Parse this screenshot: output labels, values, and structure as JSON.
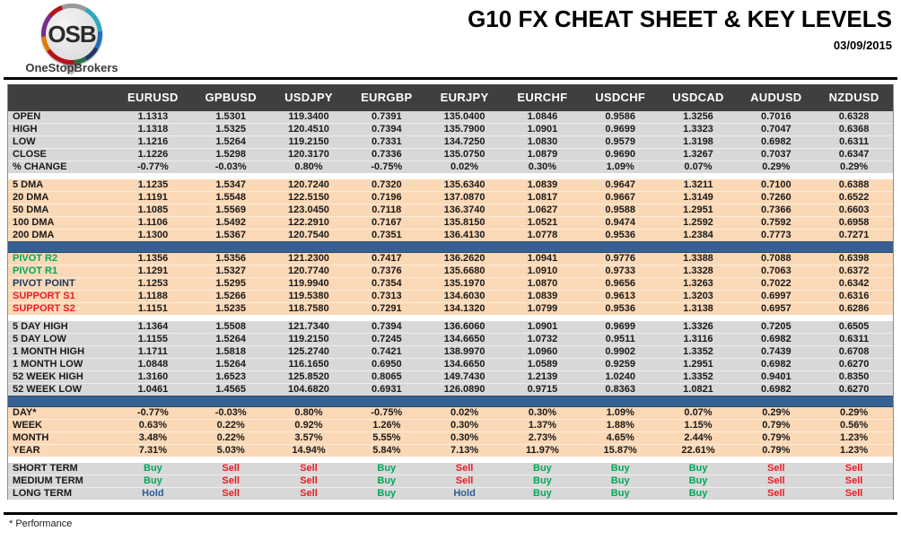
{
  "logo": {
    "circle_text": "OSB",
    "brand": "OneStopBrokers"
  },
  "header": {
    "title": "G10 FX CHEAT SHEET & KEY LEVELS",
    "date": "03/09/2015"
  },
  "colors": {
    "accent_blue": "#376092",
    "peach": "#fbd8b6",
    "gray": "#d8d8d8",
    "header_bg": "#3f3f3f",
    "buy": "#00a859",
    "sell": "#ec1c24",
    "hold": "#2e5b97",
    "green": "#00a859",
    "red": "#ec1c24",
    "navy": "#17375d"
  },
  "table": {
    "columns": [
      "EURUSD",
      "GPBUSD",
      "USDJPY",
      "EURGBP",
      "EURJPY",
      "EURCHF",
      "USDCHF",
      "USDCAD",
      "AUDUSD",
      "NZDUSD"
    ],
    "blocks": [
      {
        "name": "ohlc",
        "bg": "gray",
        "after": "gap",
        "rows": [
          {
            "label": "OPEN",
            "values": [
              "1.1313",
              "1.5301",
              "119.3400",
              "0.7391",
              "135.0400",
              "1.0846",
              "0.9586",
              "1.3256",
              "0.7016",
              "0.6328"
            ]
          },
          {
            "label": "HIGH",
            "values": [
              "1.1318",
              "1.5325",
              "120.4510",
              "0.7394",
              "135.7900",
              "1.0901",
              "0.9699",
              "1.3323",
              "0.7047",
              "0.6368"
            ]
          },
          {
            "label": "LOW",
            "values": [
              "1.1216",
              "1.5264",
              "119.2150",
              "0.7331",
              "134.7250",
              "1.0830",
              "0.9579",
              "1.3198",
              "0.6982",
              "0.6311"
            ]
          },
          {
            "label": "CLOSE",
            "values": [
              "1.1226",
              "1.5298",
              "120.3170",
              "0.7336",
              "135.0750",
              "1.0879",
              "0.9690",
              "1.3267",
              "0.7037",
              "0.6347"
            ]
          },
          {
            "label": "% CHANGE",
            "values": [
              "-0.77%",
              "-0.03%",
              "0.80%",
              "-0.75%",
              "0.02%",
              "0.30%",
              "1.09%",
              "0.07%",
              "0.29%",
              "0.29%"
            ]
          }
        ]
      },
      {
        "name": "moving-averages",
        "bg": "peach",
        "after": "blue",
        "rows": [
          {
            "label": "5 DMA",
            "values": [
              "1.1235",
              "1.5347",
              "120.7240",
              "0.7320",
              "135.6340",
              "1.0839",
              "0.9647",
              "1.3211",
              "0.7100",
              "0.6388"
            ]
          },
          {
            "label": "20 DMA",
            "values": [
              "1.1191",
              "1.5548",
              "122.5150",
              "0.7196",
              "137.0870",
              "1.0817",
              "0.9667",
              "1.3149",
              "0.7260",
              "0.6522"
            ]
          },
          {
            "label": "50 DMA",
            "values": [
              "1.1085",
              "1.5569",
              "123.0450",
              "0.7118",
              "136.3740",
              "1.0627",
              "0.9588",
              "1.2951",
              "0.7366",
              "0.6603"
            ]
          },
          {
            "label": "100 DMA",
            "values": [
              "1.1106",
              "1.5492",
              "122.2910",
              "0.7167",
              "135.8150",
              "1.0521",
              "0.9474",
              "1.2592",
              "0.7592",
              "0.6958"
            ]
          },
          {
            "label": "200 DMA",
            "values": [
              "1.1300",
              "1.5367",
              "120.7540",
              "0.7351",
              "136.4130",
              "1.0778",
              "0.9536",
              "1.2384",
              "0.7773",
              "0.7271"
            ]
          }
        ]
      },
      {
        "name": "pivots",
        "bg": "peach",
        "after": "gap",
        "rows": [
          {
            "label": "PIVOT R2",
            "label_color": "green",
            "values": [
              "1.1356",
              "1.5356",
              "121.2300",
              "0.7417",
              "136.2620",
              "1.0941",
              "0.9776",
              "1.3388",
              "0.7088",
              "0.6398"
            ]
          },
          {
            "label": "PIVOT R1",
            "label_color": "green",
            "values": [
              "1.1291",
              "1.5327",
              "120.7740",
              "0.7376",
              "135.6680",
              "1.0910",
              "0.9733",
              "1.3328",
              "0.7063",
              "0.6372"
            ]
          },
          {
            "label": "PIVOT POINT",
            "label_color": "navy",
            "values": [
              "1.1253",
              "1.5295",
              "119.9940",
              "0.7354",
              "135.1970",
              "1.0870",
              "0.9656",
              "1.3263",
              "0.7022",
              "0.6342"
            ]
          },
          {
            "label": "SUPPORT S1",
            "label_color": "red",
            "values": [
              "1.1188",
              "1.5266",
              "119.5380",
              "0.7313",
              "134.6030",
              "1.0839",
              "0.9613",
              "1.3203",
              "0.6997",
              "0.6316"
            ]
          },
          {
            "label": "SUPPORT S2",
            "label_color": "red",
            "values": [
              "1.1151",
              "1.5235",
              "118.7580",
              "0.7291",
              "134.1320",
              "1.0799",
              "0.9536",
              "1.3138",
              "0.6957",
              "0.6286"
            ]
          }
        ]
      },
      {
        "name": "ranges",
        "bg": "gray",
        "after": "blue",
        "rows": [
          {
            "label": "5 DAY HIGH",
            "values": [
              "1.1364",
              "1.5508",
              "121.7340",
              "0.7394",
              "136.6060",
              "1.0901",
              "0.9699",
              "1.3326",
              "0.7205",
              "0.6505"
            ]
          },
          {
            "label": "5 DAY LOW",
            "values": [
              "1.1155",
              "1.5264",
              "119.2150",
              "0.7245",
              "134.6650",
              "1.0732",
              "0.9511",
              "1.3116",
              "0.6982",
              "0.6311"
            ]
          },
          {
            "label": "1 MONTH HIGH",
            "values": [
              "1.1711",
              "1.5818",
              "125.2740",
              "0.7421",
              "138.9970",
              "1.0960",
              "0.9902",
              "1.3352",
              "0.7439",
              "0.6708"
            ]
          },
          {
            "label": "1 MONTH LOW",
            "values": [
              "1.0848",
              "1.5264",
              "116.1650",
              "0.6950",
              "134.6650",
              "1.0589",
              "0.9259",
              "1.2951",
              "0.6982",
              "0.6270"
            ]
          },
          {
            "label": "52 WEEK HIGH",
            "values": [
              "1.3160",
              "1.6523",
              "125.8520",
              "0.8065",
              "149.7430",
              "1.2139",
              "1.0240",
              "1.3352",
              "0.9401",
              "0.8350"
            ]
          },
          {
            "label": "52 WEEK LOW",
            "values": [
              "1.0461",
              "1.4565",
              "104.6820",
              "0.6931",
              "126.0890",
              "0.9715",
              "0.8363",
              "1.0821",
              "0.6982",
              "0.6270"
            ]
          }
        ]
      },
      {
        "name": "performance",
        "bg": "peach",
        "after": "gap",
        "rows": [
          {
            "label": "DAY*",
            "values": [
              "-0.77%",
              "-0.03%",
              "0.80%",
              "-0.75%",
              "0.02%",
              "0.30%",
              "1.09%",
              "0.07%",
              "0.29%",
              "0.29%"
            ]
          },
          {
            "label": "WEEK",
            "values": [
              "0.63%",
              "0.22%",
              "0.92%",
              "1.26%",
              "0.30%",
              "1.37%",
              "1.88%",
              "1.15%",
              "0.79%",
              "0.56%"
            ]
          },
          {
            "label": "MONTH",
            "values": [
              "3.48%",
              "0.22%",
              "3.57%",
              "5.55%",
              "0.30%",
              "2.73%",
              "4.65%",
              "2.44%",
              "0.79%",
              "1.23%"
            ]
          },
          {
            "label": "YEAR",
            "values": [
              "7.31%",
              "5.03%",
              "14.94%",
              "5.84%",
              "7.13%",
              "11.97%",
              "15.87%",
              "22.61%",
              "0.79%",
              "1.23%"
            ]
          }
        ]
      },
      {
        "name": "signals",
        "bg": "gray",
        "signals": true,
        "after": "none",
        "rows": [
          {
            "label": "SHORT TERM",
            "values": [
              "Buy",
              "Sell",
              "Sell",
              "Buy",
              "Sell",
              "Buy",
              "Buy",
              "Buy",
              "Sell",
              "Sell"
            ]
          },
          {
            "label": "MEDIUM TERM",
            "values": [
              "Buy",
              "Sell",
              "Sell",
              "Buy",
              "Sell",
              "Buy",
              "Buy",
              "Buy",
              "Sell",
              "Sell"
            ]
          },
          {
            "label": "LONG TERM",
            "values": [
              "Hold",
              "Sell",
              "Sell",
              "Buy",
              "Hold",
              "Buy",
              "Buy",
              "Buy",
              "Sell",
              "Sell"
            ]
          }
        ]
      }
    ]
  },
  "footer": {
    "note": "* Performance"
  }
}
